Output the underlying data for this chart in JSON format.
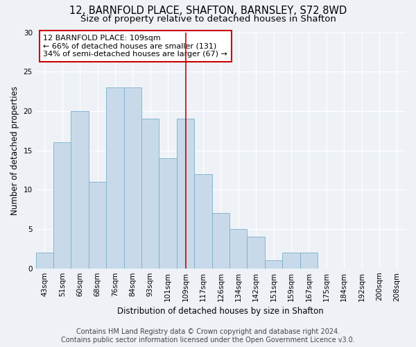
{
  "title_line1": "12, BARNFOLD PLACE, SHAFTON, BARNSLEY, S72 8WD",
  "title_line2": "Size of property relative to detached houses in Shafton",
  "xlabel": "Distribution of detached houses by size in Shafton",
  "ylabel": "Number of detached properties",
  "categories": [
    "43sqm",
    "51sqm",
    "60sqm",
    "68sqm",
    "76sqm",
    "84sqm",
    "93sqm",
    "101sqm",
    "109sqm",
    "117sqm",
    "126sqm",
    "134sqm",
    "142sqm",
    "151sqm",
    "159sqm",
    "167sqm",
    "175sqm",
    "184sqm",
    "192sqm",
    "200sqm",
    "208sqm"
  ],
  "values": [
    2,
    16,
    20,
    11,
    23,
    23,
    19,
    14,
    19,
    12,
    7,
    5,
    4,
    1,
    2,
    2,
    0,
    0,
    0,
    0,
    0
  ],
  "highlight_index": 8,
  "bar_color": "#c8daea",
  "bar_edge_color": "#7aaec8",
  "highlight_line_color": "#cc0000",
  "ylim": [
    0,
    30
  ],
  "yticks": [
    0,
    5,
    10,
    15,
    20,
    25,
    30
  ],
  "annotation_text": "12 BARNFOLD PLACE: 109sqm\n← 66% of detached houses are smaller (131)\n34% of semi-detached houses are larger (67) →",
  "annotation_box_color": "#cc0000",
  "footer_line1": "Contains HM Land Registry data © Crown copyright and database right 2024.",
  "footer_line2": "Contains public sector information licensed under the Open Government Licence v3.0.",
  "bg_color": "#eef2f7",
  "grid_color": "#ffffff",
  "title_fontsize": 10.5,
  "subtitle_fontsize": 9.5,
  "axis_label_fontsize": 8.5,
  "tick_fontsize": 7.5,
  "footer_fontsize": 7,
  "annotation_fontsize": 8
}
